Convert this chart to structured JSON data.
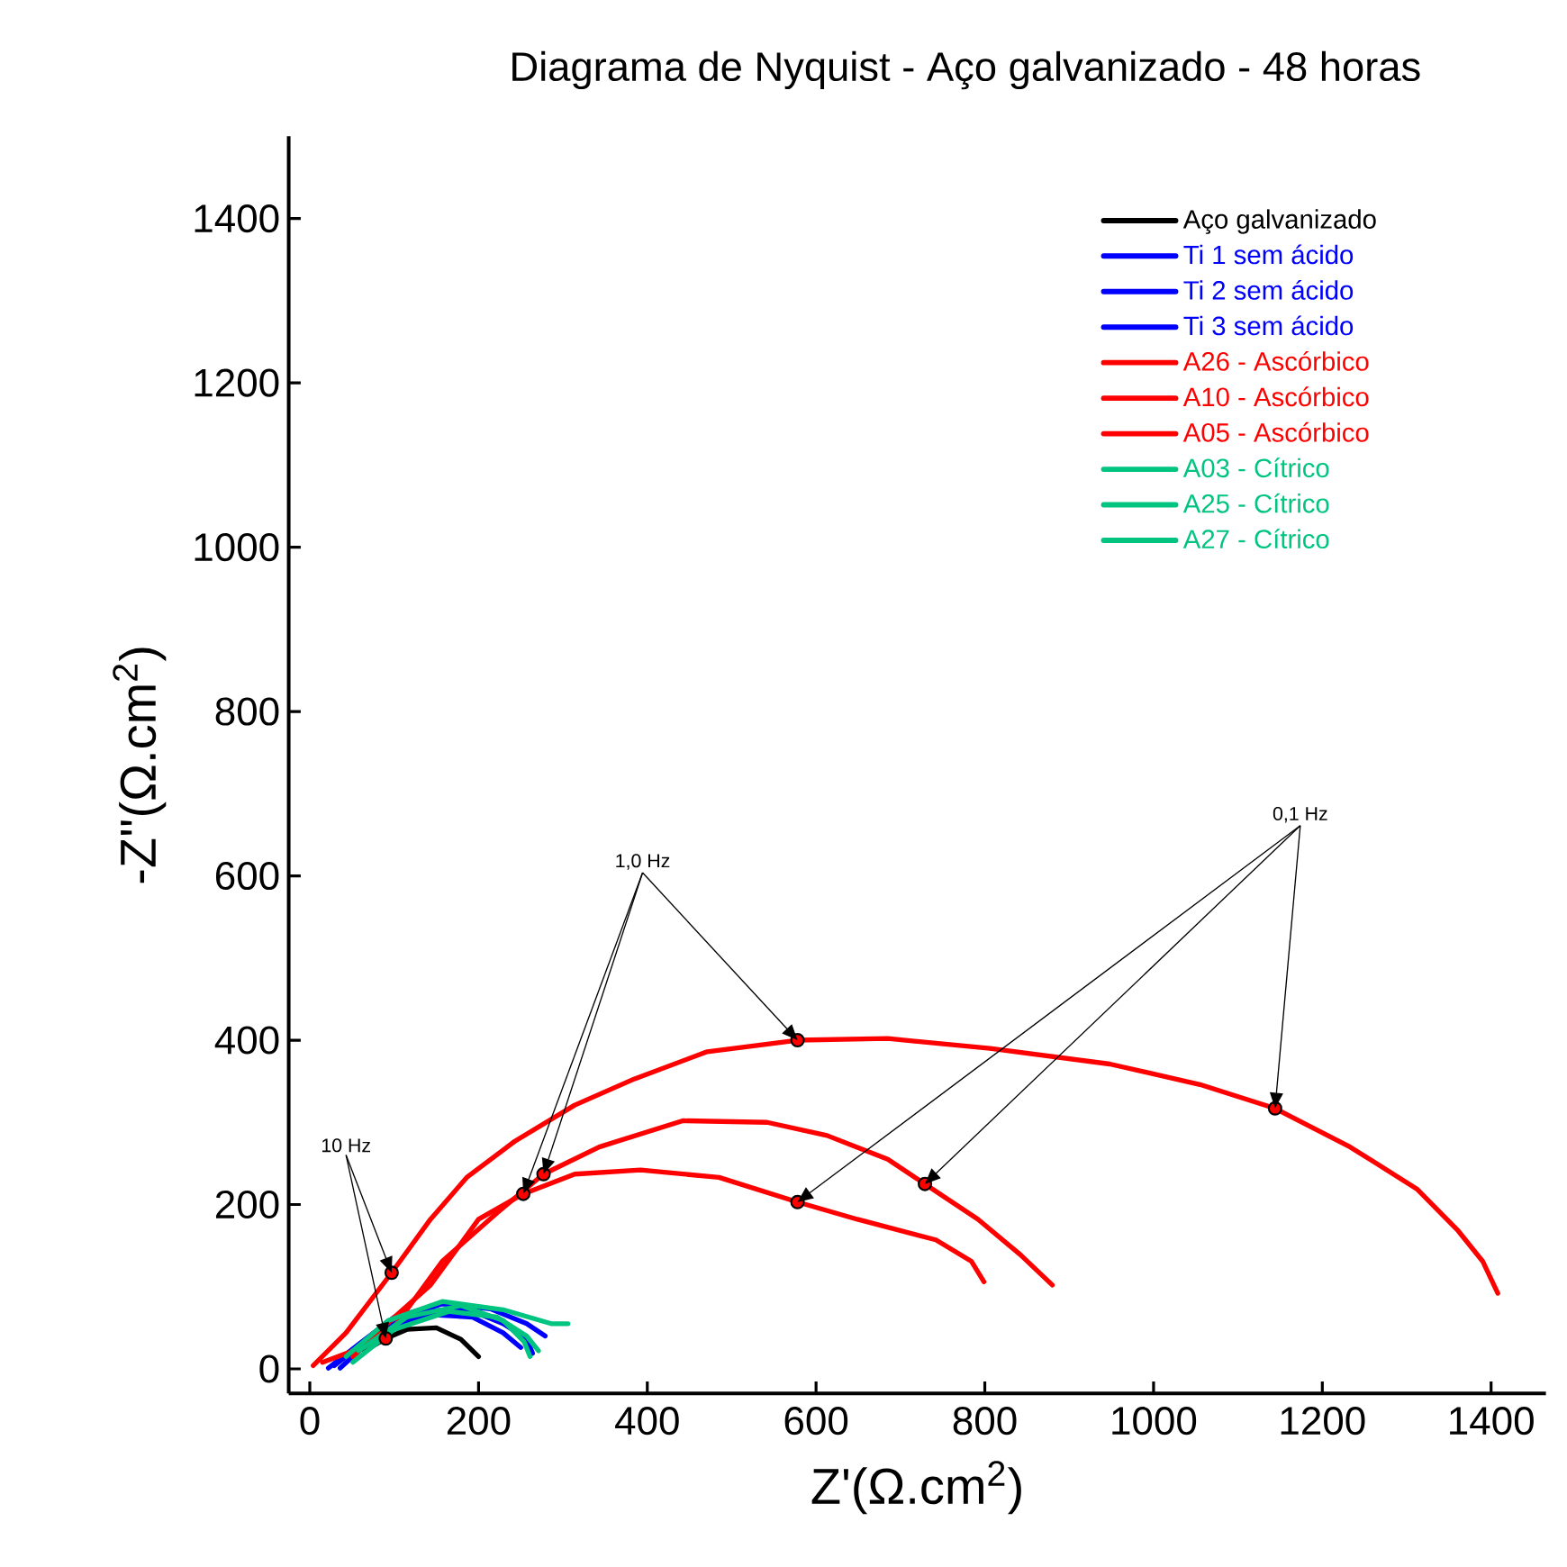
{
  "chart_data": {
    "type": "line",
    "title": "Diagrama de Nyquist - Aço galvanizado - 48 horas",
    "xlabel": "Z'(Ω.cm$^{2}$)",
    "ylabel": "-Z''(Ω.cm$^{2}$)",
    "xlim": [
      -25,
      1465
    ],
    "ylim": [
      -30,
      1500
    ],
    "xticks": [
      0,
      200,
      400,
      600,
      800,
      1000,
      1200,
      1400
    ],
    "yticks": [
      0,
      200,
      400,
      600,
      800,
      1000,
      1200,
      1400
    ],
    "legend": "top right",
    "line_style": "solid",
    "series": [
      {
        "name": "Aço galvanizado",
        "color": "#000000",
        "x": [
          65,
          90,
          115,
          150,
          179,
          200
        ],
        "values": [
          22,
          37,
          48,
          50,
          36,
          15
        ]
      },
      {
        "name": "Ti 1 sem ácido",
        "color": "#0000ff",
        "x": [
          22,
          58,
          100,
          157,
          214,
          257,
          279
        ],
        "values": [
          1,
          30,
          63,
          79,
          73,
          55,
          40
        ]
      },
      {
        "name": "Ti 2 sem ácido",
        "color": "#0000ff",
        "x": [
          29,
          79,
          129,
          186,
          229,
          257,
          264
        ],
        "values": [
          4,
          44,
          70,
          73,
          55,
          37,
          19
        ]
      },
      {
        "name": "Ti 3 sem ácido",
        "color": "#0000ff",
        "x": [
          36,
          86,
          143,
          193,
          229,
          250
        ],
        "values": [
          1,
          48,
          66,
          63,
          44,
          26
        ]
      },
      {
        "name": "A26 - Ascórbico",
        "color": "#ff0000",
        "x": [
          4,
          43,
          97,
          143,
          186,
          243,
          314,
          385,
          471,
          578,
          685,
          806,
          948,
          1055,
          1144,
          1233,
          1312,
          1361,
          1390,
          1408
        ],
        "values": [
          4,
          44,
          117,
          182,
          233,
          277,
          321,
          353,
          386,
          400,
          402,
          390,
          371,
          346,
          317,
          270,
          219,
          168,
          131,
          92
        ]
      },
      {
        "name": "A10 - Ascórbico",
        "color": "#ff0000",
        "x": [
          15,
          90,
          157,
          222,
          277,
          343,
          442,
          542,
          613,
          685,
          729,
          792,
          842,
          880
        ],
        "values": [
          8,
          37,
          131,
          190,
          237,
          270,
          302,
          300,
          284,
          255,
          225,
          182,
          139,
          102
        ]
      },
      {
        "name": "A05 - Ascórbico",
        "color": "#ff0000",
        "x": [
          51,
          97,
          143,
          200,
          253,
          314,
          392,
          485,
          578,
          649,
          742,
          784,
          799
        ],
        "values": [
          15,
          60,
          102,
          182,
          213,
          237,
          242,
          233,
          203,
          182,
          157,
          131,
          106
        ]
      },
      {
        "name": "A03 - Cítrico",
        "color": "#00c47f",
        "x": [
          43,
          93,
          157,
          229,
          286,
          306
        ],
        "values": [
          15,
          59,
          82,
          72,
          55,
          55
        ]
      },
      {
        "name": "A25 - Cítrico",
        "color": "#00c47f",
        "x": [
          58,
          115,
          179,
          229,
          254,
          261
        ],
        "values": [
          22,
          63,
          77,
          59,
          33,
          15
        ]
      },
      {
        "name": "A27 - Cítrico",
        "color": "#00c47f",
        "x": [
          51,
          100,
          165,
          222,
          257,
          271
        ],
        "values": [
          8,
          48,
          70,
          63,
          40,
          22
        ]
      },
      {
        "type": "scatter",
        "color": "#ff0000",
        "x": [
          97,
          90
        ],
        "values": [
          117,
          37
        ]
      },
      {
        "type": "scatter",
        "color": "#ff0000",
        "x": [
          253,
          277,
          578
        ],
        "values": [
          213,
          237,
          400
        ]
      },
      {
        "type": "scatter",
        "color": "#ff0000",
        "x": [
          578,
          729,
          1144
        ],
        "values": [
          203,
          225,
          317
        ]
      }
    ],
    "annotations": [
      {
        "text": "10 Hz",
        "x": 97,
        "y": 117
      },
      {
        "text": "1,0 Hz",
        "x": 578,
        "y": 400
      },
      {
        "text": "0,1 Hz",
        "x": 1144,
        "y": 317
      }
    ]
  }
}
